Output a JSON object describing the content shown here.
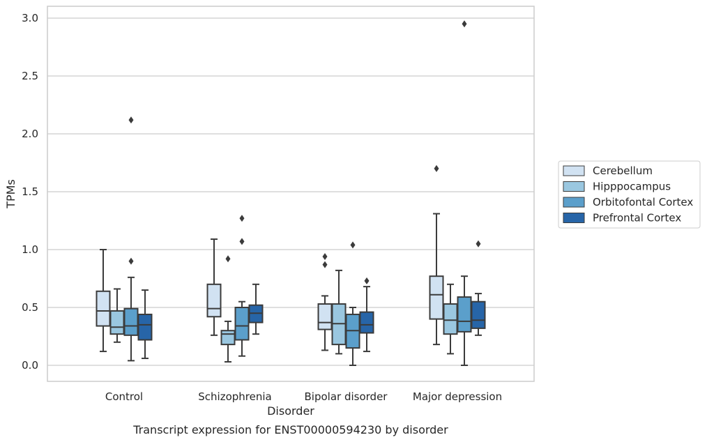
{
  "chart_data": {
    "type": "box",
    "caption": "Transcript expression for ENST00000594230 by disorder",
    "xlabel": "Disorder",
    "ylabel": "TPMs",
    "ylim": [
      -0.14,
      3.1
    ],
    "yticks": [
      0.0,
      0.5,
      1.0,
      1.5,
      2.0,
      2.5,
      3.0
    ],
    "ytick_labels": [
      "0.0",
      "0.5",
      "1.0",
      "1.5",
      "2.0",
      "2.5",
      "3.0"
    ],
    "grid": "horizontal",
    "legend_position": "right",
    "categories": [
      "Control",
      "Schizophrenia",
      "Bipolar disorder",
      "Major depression"
    ],
    "series": [
      {
        "name": "Cerebellum",
        "color": "#d1e2f2",
        "boxes": [
          {
            "whislo": 0.12,
            "q1": 0.34,
            "med": 0.47,
            "q3": 0.64,
            "whishi": 1.0,
            "fliers": []
          },
          {
            "whislo": 0.26,
            "q1": 0.42,
            "med": 0.49,
            "q3": 0.7,
            "whishi": 1.09,
            "fliers": []
          },
          {
            "whislo": 0.13,
            "q1": 0.31,
            "med": 0.37,
            "q3": 0.53,
            "whishi": 0.6,
            "fliers": [
              0.87,
              0.94
            ]
          },
          {
            "whislo": 0.18,
            "q1": 0.4,
            "med": 0.61,
            "q3": 0.77,
            "whishi": 1.31,
            "fliers": [
              1.7
            ]
          }
        ]
      },
      {
        "name": "Hipppocampus",
        "color": "#9ac7e0",
        "boxes": [
          {
            "whislo": 0.2,
            "q1": 0.27,
            "med": 0.33,
            "q3": 0.47,
            "whishi": 0.66,
            "fliers": []
          },
          {
            "whislo": 0.03,
            "q1": 0.18,
            "med": 0.27,
            "q3": 0.3,
            "whishi": 0.38,
            "fliers": [
              0.92
            ]
          },
          {
            "whislo": 0.1,
            "q1": 0.18,
            "med": 0.36,
            "q3": 0.53,
            "whishi": 0.82,
            "fliers": []
          },
          {
            "whislo": 0.1,
            "q1": 0.27,
            "med": 0.39,
            "q3": 0.53,
            "whishi": 0.7,
            "fliers": []
          }
        ]
      },
      {
        "name": "Orbitofontal Cortex",
        "color": "#5b9fcb",
        "boxes": [
          {
            "whislo": 0.04,
            "q1": 0.26,
            "med": 0.34,
            "q3": 0.49,
            "whishi": 0.76,
            "fliers": [
              0.9,
              2.12
            ]
          },
          {
            "whislo": 0.08,
            "q1": 0.22,
            "med": 0.34,
            "q3": 0.5,
            "whishi": 0.55,
            "fliers": [
              1.07,
              1.27
            ]
          },
          {
            "whislo": 0.0,
            "q1": 0.15,
            "med": 0.3,
            "q3": 0.44,
            "whishi": 0.5,
            "fliers": [
              1.04
            ]
          },
          {
            "whislo": 0.0,
            "q1": 0.29,
            "med": 0.38,
            "q3": 0.59,
            "whishi": 0.77,
            "fliers": [
              2.95
            ]
          }
        ]
      },
      {
        "name": "Prefrontal Cortex",
        "color": "#2765a8",
        "boxes": [
          {
            "whislo": 0.06,
            "q1": 0.22,
            "med": 0.35,
            "q3": 0.44,
            "whishi": 0.65,
            "fliers": []
          },
          {
            "whislo": 0.27,
            "q1": 0.37,
            "med": 0.45,
            "q3": 0.52,
            "whishi": 0.7,
            "fliers": []
          },
          {
            "whislo": 0.12,
            "q1": 0.28,
            "med": 0.35,
            "q3": 0.46,
            "whishi": 0.68,
            "fliers": [
              0.73
            ]
          },
          {
            "whislo": 0.26,
            "q1": 0.32,
            "med": 0.39,
            "q3": 0.55,
            "whishi": 0.62,
            "fliers": [
              1.05
            ]
          }
        ]
      }
    ]
  }
}
